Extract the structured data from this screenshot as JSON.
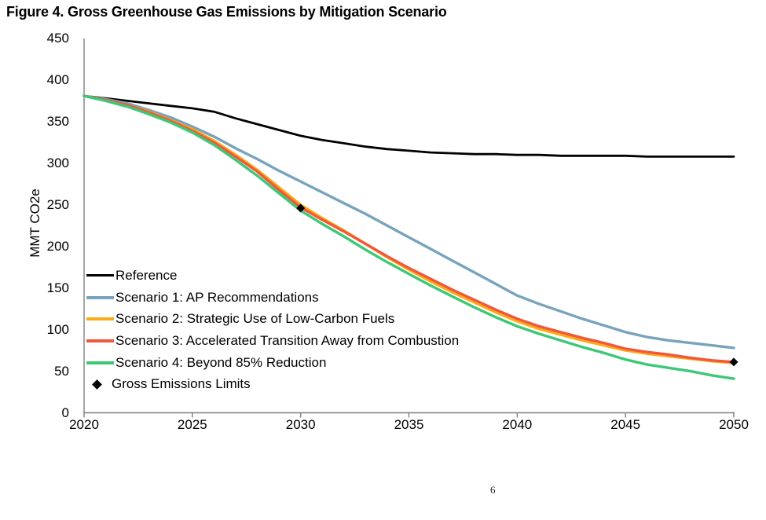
{
  "title": "Figure 4. Gross Greenhouse Gas Emissions by Mitigation Scenario",
  "page_number": "6",
  "chart_data": {
    "type": "line",
    "title": "Figure 4. Gross Greenhouse Gas Emissions by Mitigation Scenario",
    "xlabel": "",
    "ylabel": "MMT CO2e",
    "xlim": [
      2020,
      2050
    ],
    "ylim": [
      0,
      450
    ],
    "xticks": [
      2020,
      2025,
      2030,
      2035,
      2040,
      2045,
      2050
    ],
    "yticks": [
      0,
      50,
      100,
      150,
      200,
      250,
      300,
      350,
      400,
      450
    ],
    "grid": false,
    "legend_position": "inside-left",
    "x": [
      2020,
      2021,
      2022,
      2023,
      2024,
      2025,
      2026,
      2027,
      2028,
      2029,
      2030,
      2031,
      2032,
      2033,
      2034,
      2035,
      2036,
      2037,
      2038,
      2039,
      2040,
      2041,
      2042,
      2043,
      2044,
      2045,
      2046,
      2047,
      2048,
      2049,
      2050
    ],
    "series": [
      {
        "name": "Reference",
        "color": "#000000",
        "values": [
          381,
          378,
          375,
          372,
          369,
          366,
          362,
          354,
          347,
          340,
          333,
          328,
          324,
          320,
          317,
          315,
          313,
          312,
          311,
          311,
          310,
          310,
          309,
          309,
          309,
          309,
          308,
          308,
          308,
          308,
          308
        ]
      },
      {
        "name": "Scenario 1: AP Recommendations",
        "color": "#78A3BC",
        "values": [
          381,
          377,
          372,
          364,
          355,
          344,
          332,
          318,
          305,
          291,
          278,
          265,
          252,
          239,
          225,
          211,
          197,
          183,
          169,
          155,
          141,
          131,
          122,
          113,
          105,
          97,
          91,
          87,
          84,
          81,
          78
        ]
      },
      {
        "name": "Scenario 2: Strategic Use of Low-Carbon Fuels",
        "color": "#FBAB18",
        "values": [
          381,
          376,
          370,
          362,
          352,
          341,
          327,
          310,
          292,
          271,
          250,
          234,
          219,
          203,
          187,
          172,
          158,
          145,
          133,
          121,
          110,
          101,
          94,
          87,
          81,
          75,
          71,
          68,
          65,
          62,
          60
        ]
      },
      {
        "name": "Scenario 3: Accelerated Transition Away from Combustion",
        "color": "#F1583B",
        "values": [
          381,
          376,
          370,
          361,
          351,
          339,
          325,
          308,
          290,
          268,
          247,
          232,
          218,
          203,
          188,
          174,
          161,
          148,
          136,
          124,
          113,
          104,
          97,
          90,
          84,
          77,
          73,
          70,
          66,
          63,
          61
        ]
      },
      {
        "name": "Scenario 4: Beyond 85% Reduction",
        "color": "#3DC878",
        "values": [
          381,
          375,
          368,
          359,
          349,
          337,
          322,
          304,
          285,
          264,
          243,
          227,
          212,
          196,
          181,
          167,
          153,
          140,
          127,
          115,
          104,
          95,
          87,
          79,
          72,
          64,
          58,
          54,
          50,
          45,
          41
        ]
      }
    ],
    "markers": {
      "name": "Gross Emissions Limits",
      "shape": "diamond",
      "color": "#000000",
      "points": [
        {
          "x": 2030,
          "y": 246
        },
        {
          "x": 2050,
          "y": 61
        }
      ]
    }
  }
}
